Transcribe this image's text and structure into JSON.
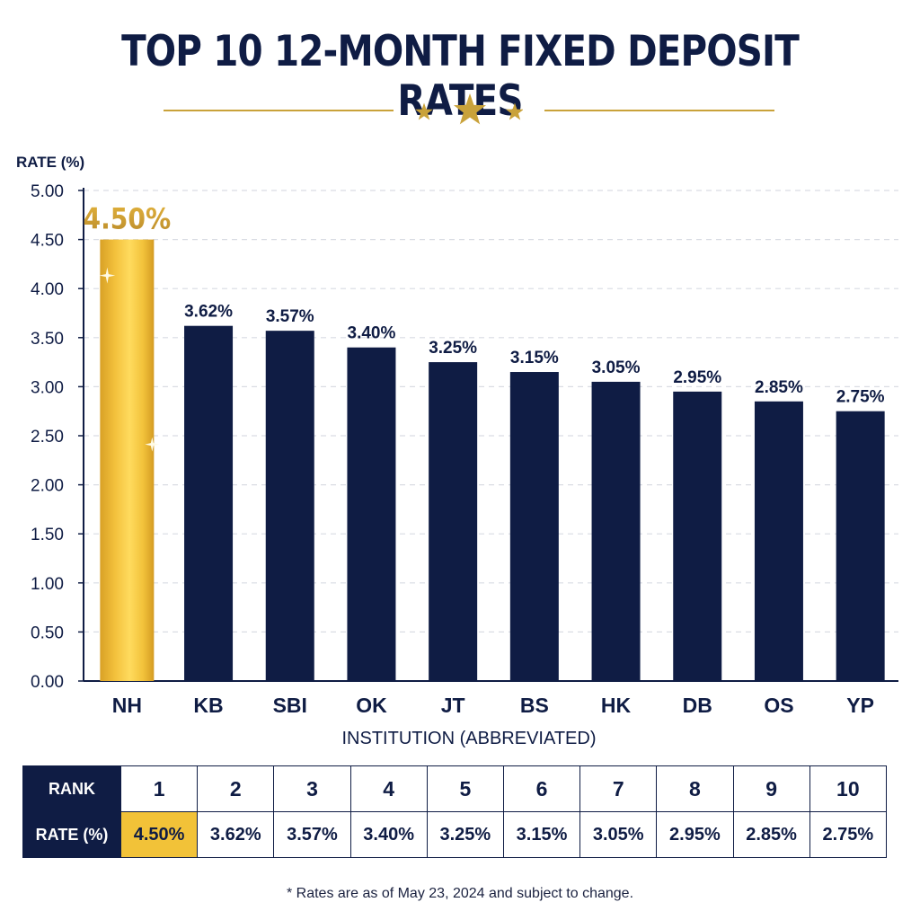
{
  "page": {
    "title": "TOP 10 12-MONTH FIXED DEPOSIT RATES",
    "footnote": "* Rates are as of May 23, 2024 and subject to change."
  },
  "colors": {
    "navy": "#0f1c44",
    "gold": "#f2c238",
    "gold_text": "#c9a23a",
    "grid": "#d9dce3"
  },
  "chart_data": {
    "type": "bar",
    "ylabel": "RATE (%)",
    "xlabel": "INSTITUTION (ABBREVIATED)",
    "ylim": [
      0,
      5
    ],
    "yticks": [
      "0.00",
      "0.50",
      "1.00",
      "1.50",
      "2.00",
      "2.50",
      "3.00",
      "3.50",
      "4.00",
      "4.50",
      "5.00"
    ],
    "grid": true,
    "highlight_index": 0,
    "categories": [
      "NH",
      "KB",
      "SBI",
      "OK",
      "JT",
      "BS",
      "HK",
      "DB",
      "OS",
      "YP"
    ],
    "values": [
      4.5,
      3.62,
      3.57,
      3.4,
      3.25,
      3.15,
      3.05,
      2.95,
      2.85,
      2.75
    ],
    "data_labels": [
      "4.50%",
      "3.62%",
      "3.57%",
      "3.40%",
      "3.25%",
      "3.15%",
      "3.05%",
      "2.95%",
      "2.85%",
      "2.75%"
    ]
  },
  "table": {
    "rank_header": "RANK",
    "rate_header": "RATE (%)",
    "ranks": [
      "1",
      "2",
      "3",
      "4",
      "5",
      "6",
      "7",
      "8",
      "9",
      "10"
    ],
    "rates": [
      "4.50%",
      "3.62%",
      "3.57%",
      "3.40%",
      "3.25%",
      "3.15%",
      "3.05%",
      "2.95%",
      "2.85%",
      "2.75%"
    ],
    "highlight_index": 0
  }
}
